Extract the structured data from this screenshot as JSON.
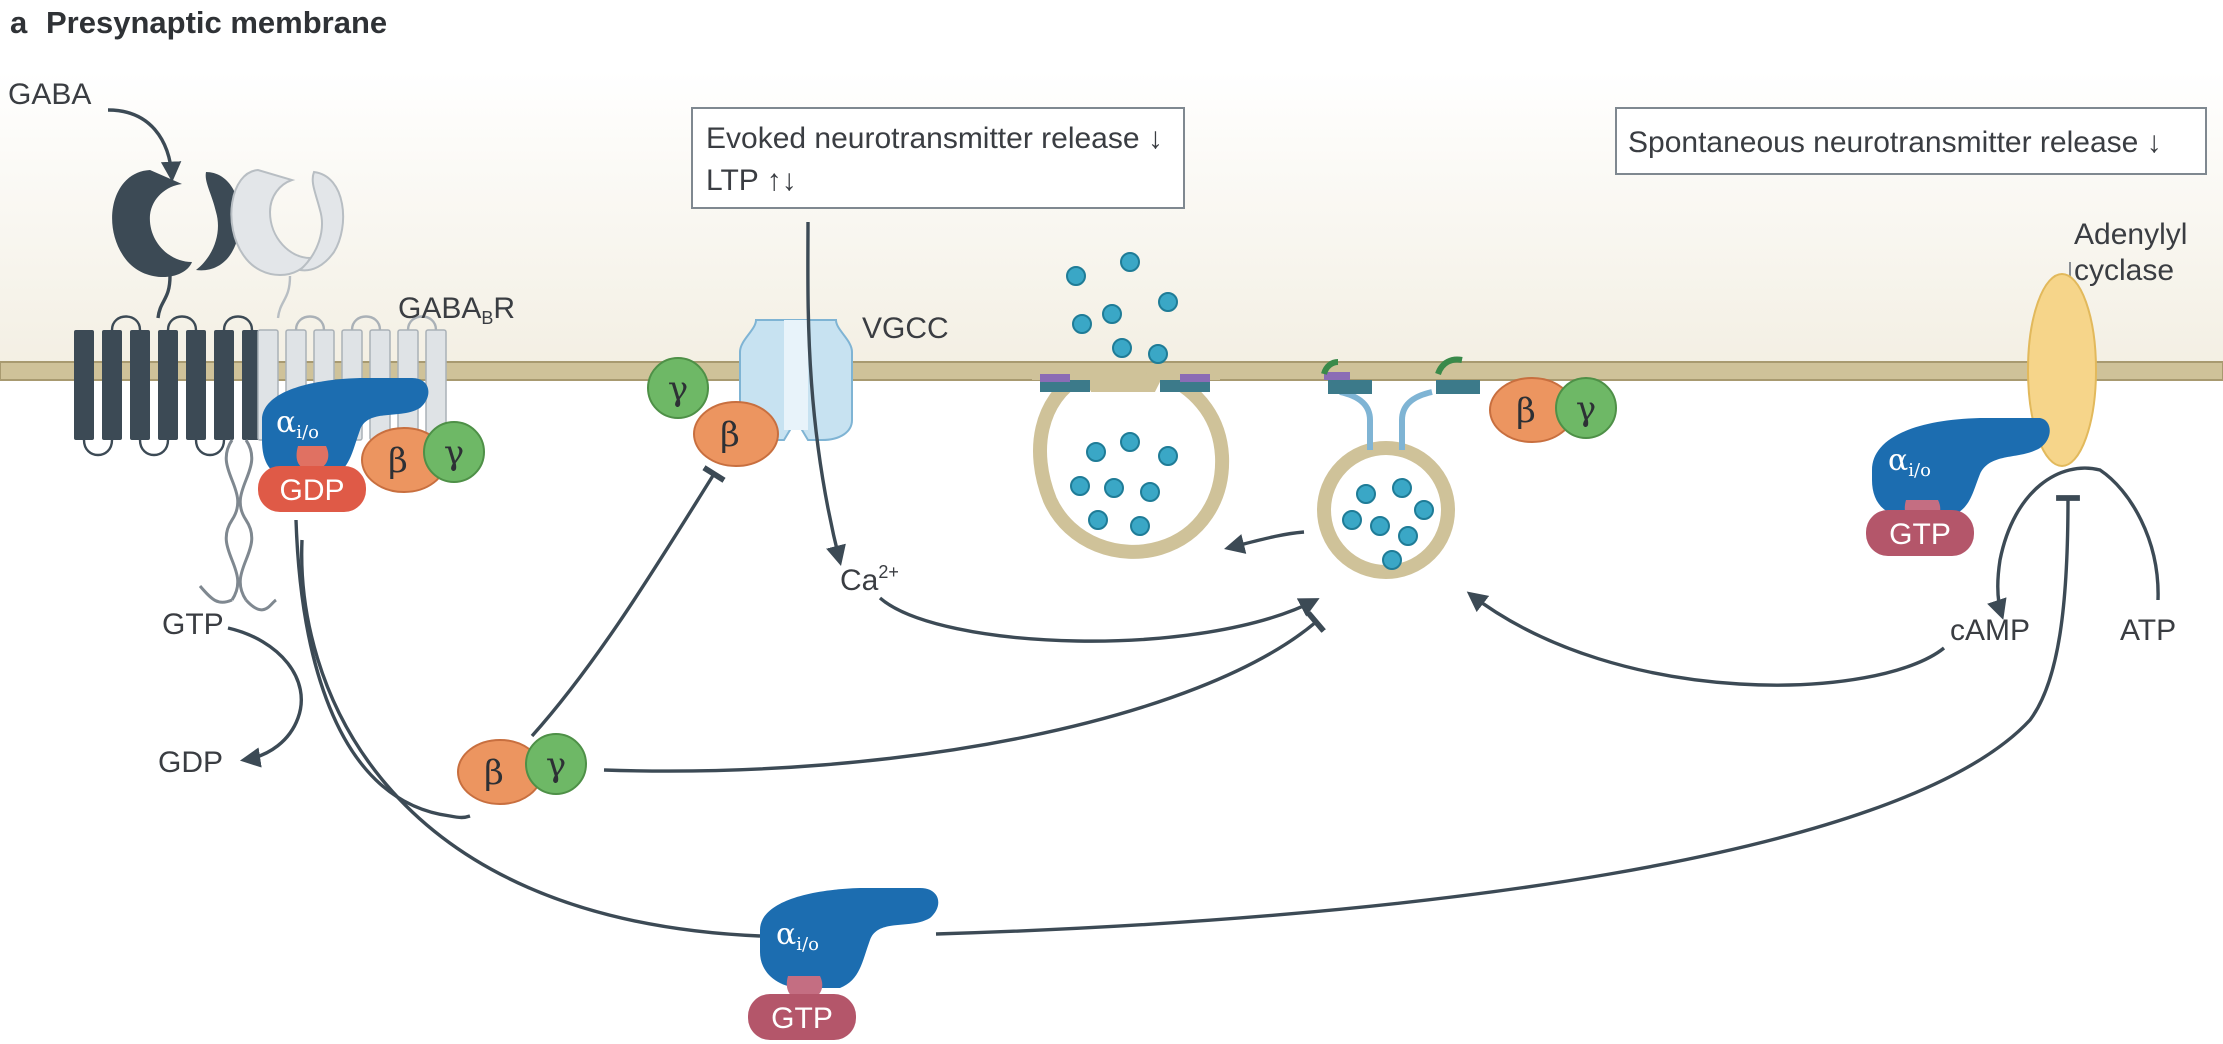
{
  "panel": {
    "letter": "a",
    "title": "Presynaptic membrane"
  },
  "labels": {
    "gaba": "GABA",
    "gabab_r_main": "GABA",
    "gabab_r_sub": "B",
    "gabab_r_tail": "R",
    "vgcc": "VGCC",
    "adenylyl_1": "Adenylyl",
    "adenylyl_2": "cyclase",
    "gtp_left": "GTP",
    "gdp_left": "GDP",
    "ca_main": "Ca",
    "ca_sup": "2+",
    "camp": "cAMP",
    "atp": "ATP"
  },
  "boxes": {
    "evoked_line1": "Evoked neurotransmitter release ↓",
    "evoked_line2": "LTP ↑↓",
    "spontaneous": "Spontaneous neurotransmitter release ↓"
  },
  "proteins": {
    "alpha": "α",
    "alpha_sub": "i/o",
    "beta": "β",
    "gamma": "γ",
    "gdp": "GDP",
    "gtp": "GTP"
  },
  "colors": {
    "alpha_blue": "#1c6db0",
    "beta_orange": "#ec9560",
    "gamma_green": "#6eb866",
    "gdp_red": "#df5a47",
    "gtp_maroon": "#b4566a",
    "receptor_dark": "#3c4a55",
    "receptor_light": "#dfe3e6",
    "membrane_tan": "#cfc299",
    "vesicle_teal": "#3aa7c6",
    "vgcc_blue": "#c7e2f1",
    "adenylyl_yellow": "#f6d58a"
  }
}
